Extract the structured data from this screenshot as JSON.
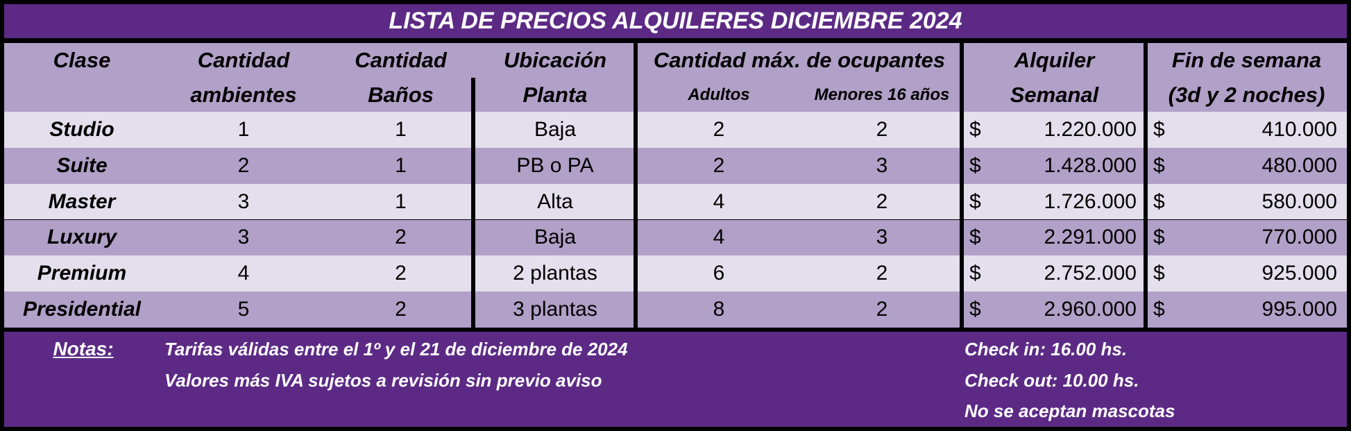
{
  "title": "LISTA DE PRECIOS ALQUILERES DICIEMBRE 2024",
  "columns": [
    {
      "lines": [
        "Clase"
      ]
    },
    {
      "lines": [
        "Cantidad",
        "ambientes"
      ]
    },
    {
      "lines": [
        "Cantidad",
        "Baños"
      ]
    },
    {
      "lines": [
        "Ubicación",
        "Planta"
      ]
    },
    {
      "lines": [
        "Adultos"
      ]
    },
    {
      "lines": [
        "Menores 16 años"
      ]
    },
    {
      "lines": [
        "Alquiler",
        "Semanal"
      ]
    },
    {
      "lines": [
        "Fin de semana",
        "(3d y 2 noches)"
      ]
    }
  ],
  "group_header": "Cantidad máx. de ocupantes",
  "currency": "$",
  "rows": [
    [
      "Studio",
      1,
      1,
      "Baja",
      2,
      2,
      "1.220.000",
      "410.000"
    ],
    [
      "Suite",
      2,
      1,
      "PB o PA",
      2,
      3,
      "1.428.000",
      "480.000"
    ],
    [
      "Master",
      3,
      1,
      "Alta",
      4,
      2,
      "1.726.000",
      "580.000"
    ],
    [
      "Luxury",
      3,
      2,
      "Baja",
      4,
      3,
      "2.291.000",
      "770.000"
    ],
    [
      "Premium",
      4,
      2,
      "2 plantas",
      6,
      2,
      "2.752.000",
      "925.000"
    ],
    [
      "Presidential",
      5,
      2,
      "3 plantas",
      8,
      2,
      "2.960.000",
      "995.000"
    ]
  ],
  "notes": {
    "label": "Notas:",
    "left": [
      "Tarifas válidas entre el 1º y el 21 de diciembre de 2024",
      "Valores más IVA sujetos a revisión sin previo aviso"
    ],
    "right": [
      "Check in: 16.00 hs.",
      "Check out: 10.00 hs.",
      "No se aceptan mascotas"
    ]
  }
}
